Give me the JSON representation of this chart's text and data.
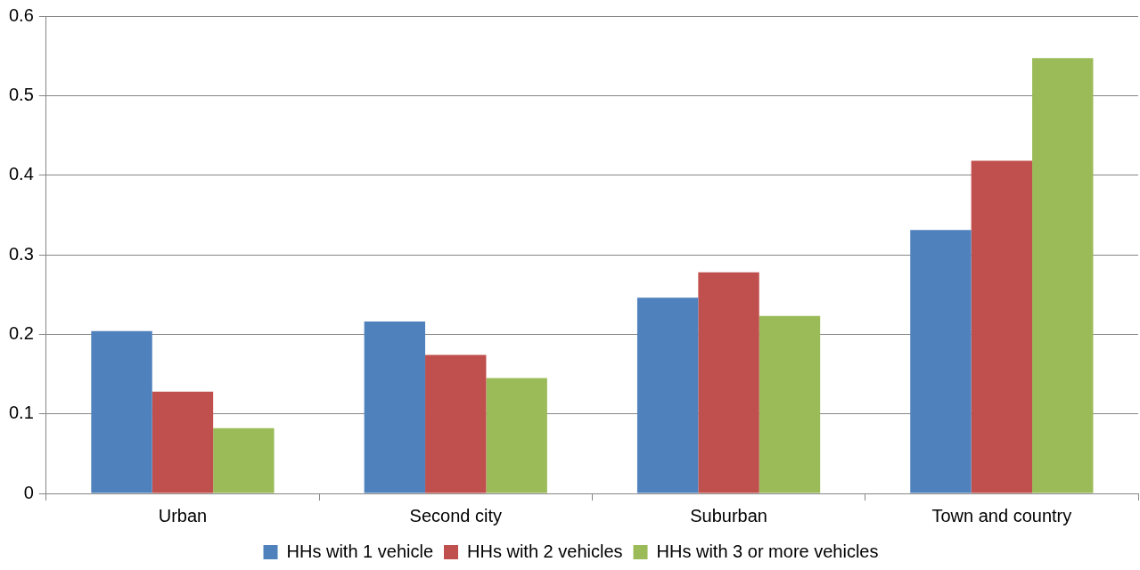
{
  "chart_data": {
    "type": "bar",
    "categories": [
      "Urban",
      "Second city",
      "Suburban",
      "Town and country"
    ],
    "series": [
      {
        "name": "HHs with 1 vehicle",
        "color": "#4f81bd",
        "values": [
          0.204,
          0.216,
          0.246,
          0.331
        ]
      },
      {
        "name": "HHs with 2 vehicles",
        "color": "#c0504d",
        "values": [
          0.128,
          0.174,
          0.278,
          0.418
        ]
      },
      {
        "name": "HHs with 3 or more vehicles",
        "color": "#9bbb59",
        "values": [
          0.082,
          0.145,
          0.223,
          0.547
        ]
      }
    ],
    "ylim": [
      0,
      0.6
    ],
    "yticks": [
      0,
      0.1,
      0.2,
      0.3,
      0.4,
      0.5,
      0.6
    ],
    "grid": "y",
    "legend": "bottom"
  }
}
